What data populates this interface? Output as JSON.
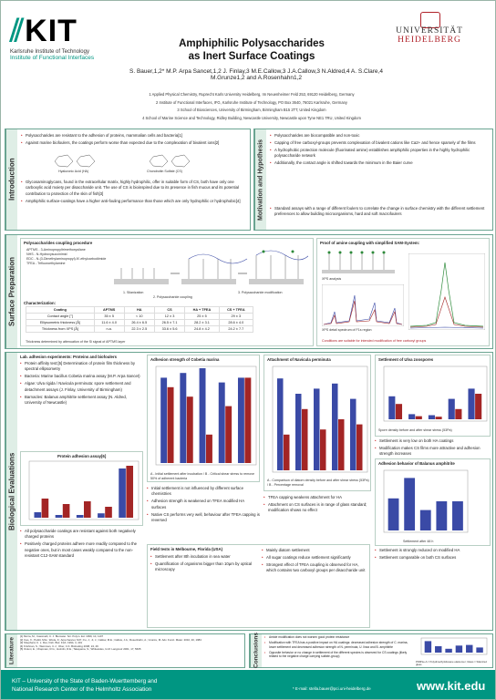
{
  "header": {
    "kit_logo": "KIT",
    "kit_subtitle": "Karlsruhe Institute of Technology",
    "institute": "Institute of Functional Interfaces",
    "uni_line1": "UNIVERSITÄT",
    "uni_line2": "HEIDELBERG",
    "title_line1": "Amphiphilic Polysaccharides",
    "title_line2": "as Inert Surface Coatings",
    "authors": "S. Bauer,1,2* M.P. Arpa Sancet,1,2 J. Finlay,3 M.E.Callow,3 J.A.Callow,3 N.Aldred,4 A. S.Clare,4 M.Grunze1,2 and A.Rosenhahn1,2",
    "affiliations": [
      "1 Applied Physical Chemistry, Ruprecht Karls University Heidelberg, Im Neuenheimer Feld 253, 69120 Heidelberg, Germany",
      "2 Institute of Functional Interfaces, IFG, Karlsruhe Institute of Technology, PO Box 3640, 76021 Karlsruhe, Germany",
      "3 School of Biosciences, University of Birmingham, Birmingham B15 2TT, United Kingdom",
      "4 School of Marine Science and Technology, Ridley Building, Newcastle University, Newcastle upon Tyne NE1 7RU, United Kingdom"
    ]
  },
  "sections": {
    "introduction": "Introduction",
    "motivation": "Motivation and Hypothesis",
    "surface_prep": "Surface Preparation",
    "bio_eval": "Biological Evaluations",
    "literature": "Literature",
    "acknowledgements": "Acknowledgements",
    "conclusions": "Conclusions"
  },
  "intro": {
    "bullets": [
      "Polysaccharides are resistant to the adhesion of proteins, mammalian cells and bacteria[1]",
      "Against marine biofoulers, the coatings perform worse than expected due to the complexation of bivalent ions[2]",
      "Glycosaminoglycans, found in the extracellular matrix, highly hydrophilic, offer in suitable form of CS, both have only one carboxylic acid moiety per disaccharide unit. The use of CS is bioinspired due to its presence in fish mucus and its potential contribution to protection of the skin of fish[3]",
      "Amphiphilic surface-coatings have a higher anti-fouling performance than those which are only hydrophilic or hydrophobic[4]"
    ],
    "ha_label": "Hyaluronic Acid (HA)",
    "cs_label": "Chondroitin Sulfate (CS)"
  },
  "motivation": {
    "bullets": [
      "Polysaccharides are biocompatible and non-toxic",
      "Capping of free carboxyl-groups prevents complexation of bivalent cations like Ca2+ and hence sparsely of the films",
      "A hydrophobic protection molecule (fluorinated amine) establishes amphiphilic properties in the highly hydrophilic polysaccharide network",
      "Additionally, the contact angle is shifted towards the minimum in the Baier curve",
      "Standard assays with a range of different foulers to correlate the change in surface chemistry with the different settlement preferences to allow building microorganisms, hard and soft macrofoulers"
    ]
  },
  "surface": {
    "proc_title": "Polysaccharides coupling procedure",
    "reagents": [
      "APTMS - 3-Aminopropyltrimethoxysilane",
      "NHS - N-Hydroxysuccinimid",
      "EDC - N-(3-Dimethylaminopropyl)-N'-ethylcarbodiimide",
      "TFEA - Trifluoroethylamine"
    ],
    "steps": [
      "1. Silanization",
      "2. Polysaccharide coupling",
      "3. Polysaccharide modification"
    ],
    "char_title": "Characterization:",
    "table_headers": [
      "Coating",
      "APTMS",
      "HA",
      "CS",
      "HA + TFEA",
      "CS + TFEA"
    ],
    "table_rows": [
      [
        "Contact angle [°]",
        "35 ± 5",
        "< 10",
        "12 ± 3",
        "25 ± 5",
        "29 ± 3"
      ],
      [
        "Ellipsometric thickness [Å]",
        "11.6 ± 4.0",
        "26.4 ± 6.5",
        "26.5 ± 7.1",
        "28.2 ± 3.1",
        "28.6 ± 4.0"
      ],
      [
        "Thickness from XPS [Å]",
        "n.a.",
        "22.3 ± 2.5",
        "33.6 ± 5.6",
        "24.8 ± 4.2",
        "24.2 ± 7.7"
      ]
    ],
    "table_note": "Thickness determined by attenuation of the Si signal of APTMS layer",
    "xps_title": "Proof of amine coupling with simplified SAM-System:",
    "xps_caption": "XPS analysis",
    "xps_note": "XPS detail spectrum of F1s region",
    "conditions_note": "Conditions are suitable for intended modification of free carboxyl groups"
  },
  "bio": {
    "lab_title": "Lab. adhesion experiments: Proteins and biofoulers",
    "lab_items": [
      "Protein affinity test:[5] Determination of protein film thickness by spectral ellipsometry",
      "Bacteria: Marine bacillus Cobetia marina assay (M.P. Arpa Sancet)",
      "Algae: Ulva rigida / Navicula perminuta: spore settlement and detachment assays (J. Finlay, University of Birmingham)",
      "Barnacles: Balanus amphitrite settlement assay (N. Aldred, University of Newcastle)"
    ],
    "protein_title": "Protein adhesion assay[6]",
    "protein_bullets": [
      "All polysaccharide coatings are resistant against both negatively charged proteins",
      "Positively charged proteins adhere more readily compared to the negative ones, but in most cases weakly compared to the non-resistant C12-SAM standard"
    ],
    "cobetia_title": "Adhesion strength of Cobetia marina",
    "cobetia_caption": "A - Initial settlement after incubation / B - Critical shear stress to remove 50% of adherent bacteria",
    "cobetia_bullets": [
      "Initial settlement is not influenced by different surface chemistries",
      "Adhesion strength is weakened on TFEA modified HA surfaces",
      "Native CS performs very well, behaviour after TFEA capping is reversed"
    ],
    "navicula_title": "Attachment of Navicula perminuta",
    "navicula_caption": "A - Comparison of diatom density before and after shear stress (53Pa) / B - Percentage removal",
    "navicula_bullets": [
      "TFEA capping weakens attachment for HA",
      "Attachment on CS surfaces is in range of glass standard; modification shows no effect"
    ],
    "ulva_title": "Settlement of Ulva zoospores",
    "ulva_caption": "Spore density before and after shear stress (53Pa)",
    "ulva_bullets": [
      "Settlement is very low on both HA coatings",
      "Modification makes CS films more attractive and adhesion strength increases"
    ],
    "balanus_title": "Adhesion behavior of Balanus amphitrite",
    "balanus_caption": "Settlement after 48 h",
    "balanus_bullets": [
      "Settlement is strongly reduced on modified HA",
      "Settlement comparable on both CS surfaces"
    ],
    "field_title": "Field tests in Melbourne, Florida (USA)",
    "field_bullets": [
      "Settlement after 8th incubation in sea water",
      "Quantification of organisms bigger than 10µm by optical microscopy"
    ],
    "field_bullets_right": [
      "Mainly diatom settlement",
      "All sugar coatings reduce settlement significantly",
      "Strongest effect of TFEA coupling is observed for HA, which contains two carboxyl groups per disaccharide unit"
    ]
  },
  "literature": [
    "[1] Morra, M.; Cassinelli, C. J. Biomater. Sci. Polym. Ed. 1999, 10, 1107",
    "[2] Cao, X.; Pettitt, M.E.; Wode, F.; Arpa Sancet, M.P.; Fu, J.; Ji, J.; Callow, M.E.; Callow, J.A.; Rosenhahn, A.; Grunze, M. Adv. Funct. Mater. 2010, 20, 1984",
    "[3] Shephard, K. L. Rev. Fish. Biol. Fish. 1994, 4, 401",
    "[4] Krishnan, S.; Weinman, C.J.; Ober, C.K. Biofouling 2008, 24, 49",
    "[5] Ostuni, E.; Chapman, R.G.; Holmlin, R.E.; Takayama, S.; Whitesides, G.M. Langmuir 2001, 17, 5605"
  ],
  "acknowledgement": "The work was funded by the Office of Naval Research (Grant number N00014-08-1-1116).",
  "conclusions": {
    "bullets": [
      "Amide modification does not worsen good protein resistance",
      "Modification with TFEA has a positive impact on HA coatings: decreased adhesion strength of C. marina, lower settlement and decreased adhesion strength of N. perminuta, U. linza and B. amphitrite",
      "Opposite behavior or no change in settlement of the different species is observed for CS coatings (likely related to the negative charge carrying sulfate-group)"
    ],
    "legend_note": "PDMSe-A = Polydimethylsiloxane elastomer; Glass = Silanized glass"
  },
  "footer": {
    "line1": "KIT – University of the State of Baden-Wuerttemberg and",
    "line2": "National Research Center of the Helmholtz Association",
    "email": "* E-mail: stella.bauer@pci.uni-heidelberg.de",
    "www": "www.kit.edu"
  },
  "colors": {
    "kit_green": "#009682",
    "heidelberg_red": "#b0222a",
    "panel_border": "#6aa491",
    "bar_blue": "#3a4aa6",
    "bar_red": "#a32525"
  },
  "chart_data": [
    {
      "type": "bar",
      "title": "Adhesion strength of Cobetia marina",
      "series": [
        {
          "values": [
            0.9,
            0.95,
            1.0,
            0.85,
            0.9
          ]
        },
        {
          "values": [
            0.8,
            0.7,
            0.3,
            0.6,
            0.9
          ]
        }
      ]
    },
    {
      "type": "bar",
      "title": "Attachment of Navicula perminuta",
      "series": [
        {
          "values": [
            0.9,
            0.75,
            0.8,
            0.85,
            0.7
          ]
        },
        {
          "values": [
            0.35,
            0.6,
            0.4,
            0.5,
            0.45
          ]
        }
      ]
    },
    {
      "type": "bar",
      "title": "Settlement of Ulva zoospores",
      "series": [
        {
          "values": [
            0.45,
            0.1,
            0.08,
            0.4,
            0.6
          ]
        },
        {
          "values": [
            0.3,
            0.06,
            0.05,
            0.2,
            0.5
          ]
        }
      ]
    },
    {
      "type": "bar",
      "title": "Adhesion behavior of Balanus amphitrite",
      "series": [
        {
          "values": [
            0.55,
            0.9,
            0.35,
            0.5,
            0.5
          ]
        }
      ]
    },
    {
      "type": "bar",
      "title": "Protein adhesion assay",
      "series": [
        {
          "values": [
            0.1,
            0.05,
            0.05,
            0.08,
            0.9
          ]
        },
        {
          "values": [
            0.35,
            0.25,
            0.3,
            0.2,
            0.95
          ]
        }
      ]
    },
    {
      "type": "bar",
      "title": "Field tests",
      "series": [
        {
          "values": [
            0.9,
            0.5,
            0.3,
            0.55,
            0.6,
            0.4
          ]
        }
      ]
    }
  ]
}
